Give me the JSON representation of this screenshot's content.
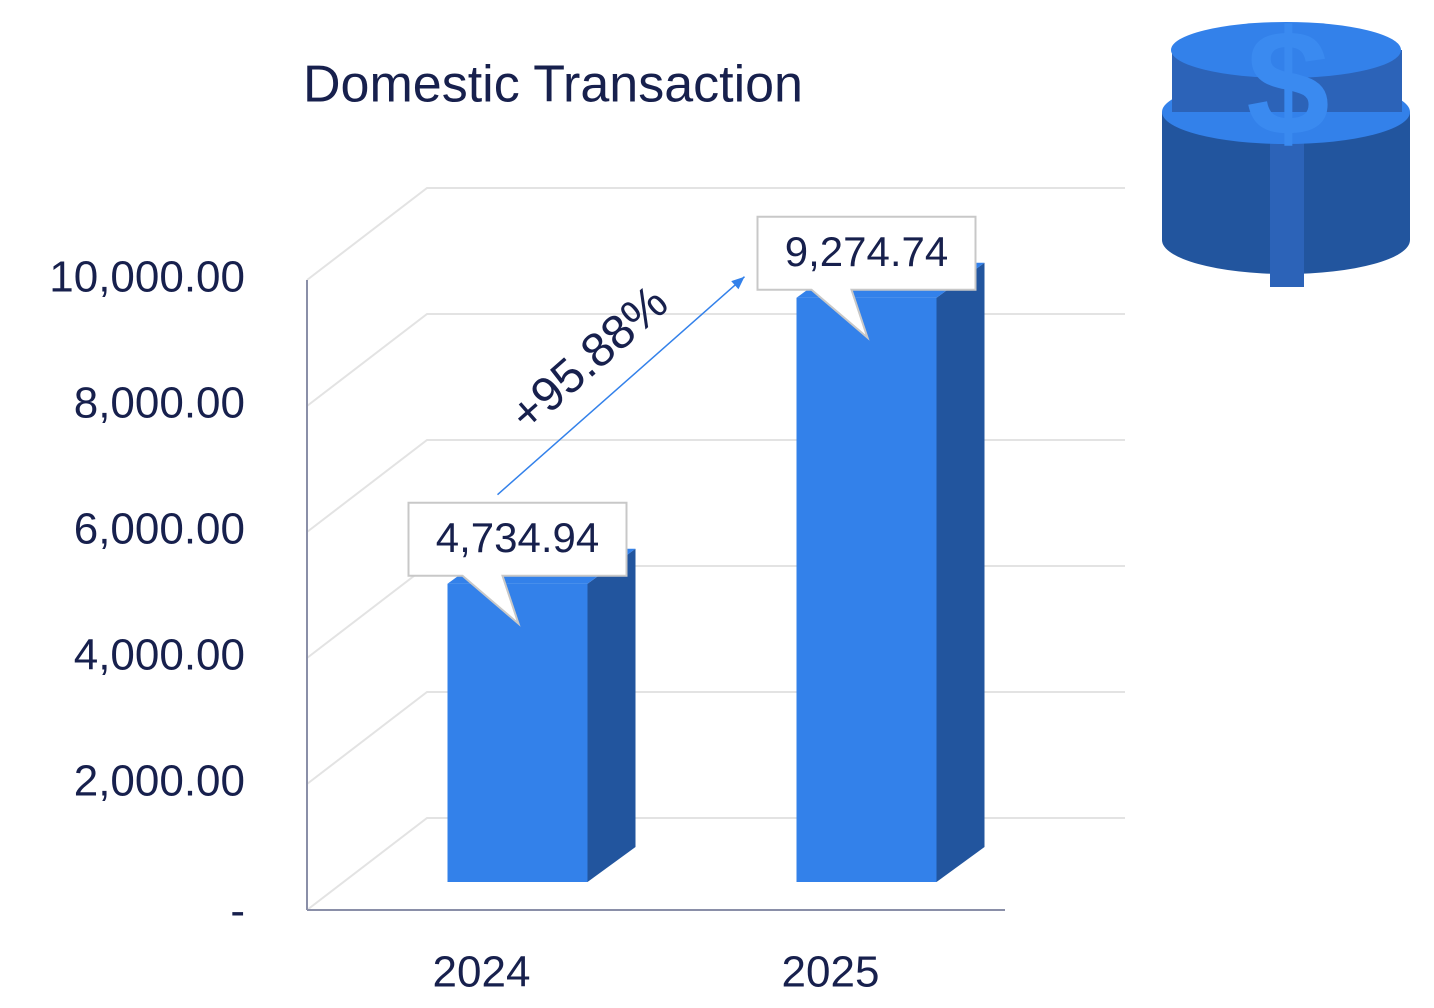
{
  "chart_data": {
    "type": "bar3d",
    "title": "Domestic Transaction",
    "categories": [
      "2024",
      "2025"
    ],
    "values": [
      4734.94,
      9274.74
    ],
    "value_labels": [
      "4,734.94",
      "9,274.74"
    ],
    "color": "#3381ea",
    "side_color": "#22559e",
    "ylim": [
      0,
      10000
    ],
    "yticks": [
      {
        "value": 0,
        "label": "-"
      },
      {
        "value": 2000,
        "label": "2,000.00"
      },
      {
        "value": 4000,
        "label": "4,000.00"
      },
      {
        "value": 6000,
        "label": "6,000.00"
      },
      {
        "value": 8000,
        "label": "8,000.00"
      },
      {
        "value": 10000,
        "label": "10,000.00"
      }
    ],
    "grid": true,
    "annotation": "+95.88%"
  }
}
